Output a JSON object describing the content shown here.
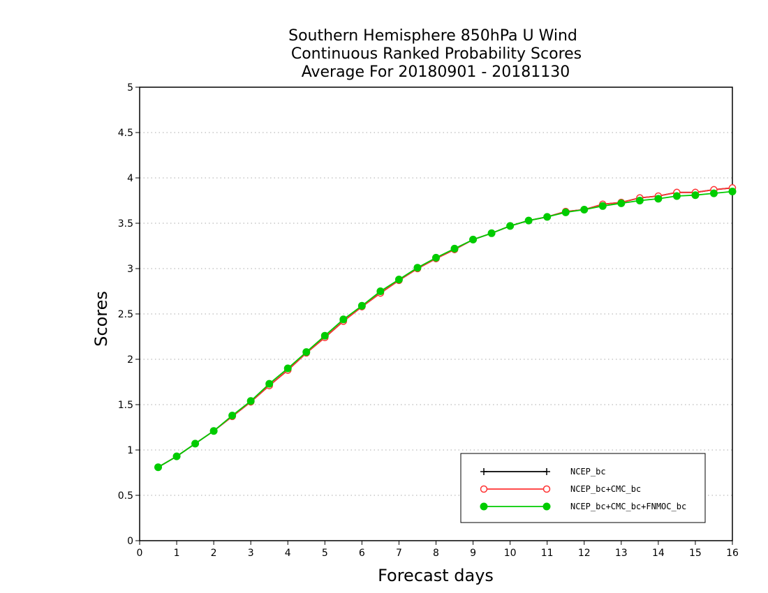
{
  "chart_data": {
    "type": "line",
    "title_lines": [
      "Southern Hemisphere 850hPa U Wind",
      "Continuous Ranked Probability Scores",
      "Average For 20180901 - 20181130"
    ],
    "xlabel": "Forecast days",
    "ylabel": "Scores",
    "xlim": [
      0,
      16
    ],
    "ylim": [
      0,
      5
    ],
    "x_ticks": [
      "0",
      "1",
      "2",
      "3",
      "4",
      "5",
      "6",
      "7",
      "8",
      "9",
      "10",
      "11",
      "12",
      "13",
      "14",
      "15",
      "16"
    ],
    "y_ticks": [
      "0",
      "0.5",
      "1",
      "1.5",
      "2",
      "2.5",
      "3",
      "3.5",
      "4",
      "4.5",
      "5"
    ],
    "grid": "horizontal dotted",
    "legend_position": "bottom-right",
    "x": [
      0.5,
      1,
      1.5,
      2,
      2.5,
      3,
      3.5,
      4,
      4.5,
      5,
      5.5,
      6,
      6.5,
      7,
      7.5,
      8,
      8.5,
      9,
      9.5,
      10,
      10.5,
      11,
      11.5,
      12,
      12.5,
      13,
      13.5,
      14,
      14.5,
      15,
      15.5,
      16
    ],
    "series": [
      {
        "name": "NCEP_bc",
        "color": "#000000",
        "marker": "plus",
        "values": [
          0.81,
          0.93,
          1.07,
          1.21,
          1.37,
          1.53,
          1.71,
          1.88,
          2.07,
          2.24,
          2.42,
          2.58,
          2.73,
          2.87,
          3.0,
          3.11,
          3.21,
          3.32,
          3.39,
          3.47,
          3.53,
          3.57,
          3.63,
          3.65,
          3.71,
          3.73,
          3.78,
          3.8,
          3.84,
          3.84,
          3.87,
          3.89
        ]
      },
      {
        "name": "NCEP_bc+CMC_bc",
        "color": "#ff3333",
        "marker": "open-circle",
        "values": [
          0.81,
          0.93,
          1.07,
          1.21,
          1.37,
          1.53,
          1.71,
          1.88,
          2.07,
          2.24,
          2.42,
          2.58,
          2.73,
          2.87,
          3.0,
          3.11,
          3.21,
          3.32,
          3.39,
          3.47,
          3.53,
          3.57,
          3.63,
          3.65,
          3.71,
          3.73,
          3.78,
          3.8,
          3.84,
          3.84,
          3.87,
          3.89
        ]
      },
      {
        "name": "NCEP_bc+CMC_bc+FNMOC_bc",
        "color": "#00cc00",
        "marker": "filled-circle",
        "values": [
          0.81,
          0.93,
          1.07,
          1.21,
          1.38,
          1.54,
          1.73,
          1.9,
          2.08,
          2.26,
          2.44,
          2.59,
          2.75,
          2.88,
          3.01,
          3.12,
          3.22,
          3.32,
          3.39,
          3.47,
          3.53,
          3.57,
          3.62,
          3.65,
          3.69,
          3.72,
          3.75,
          3.77,
          3.8,
          3.81,
          3.83,
          3.85
        ]
      }
    ]
  }
}
